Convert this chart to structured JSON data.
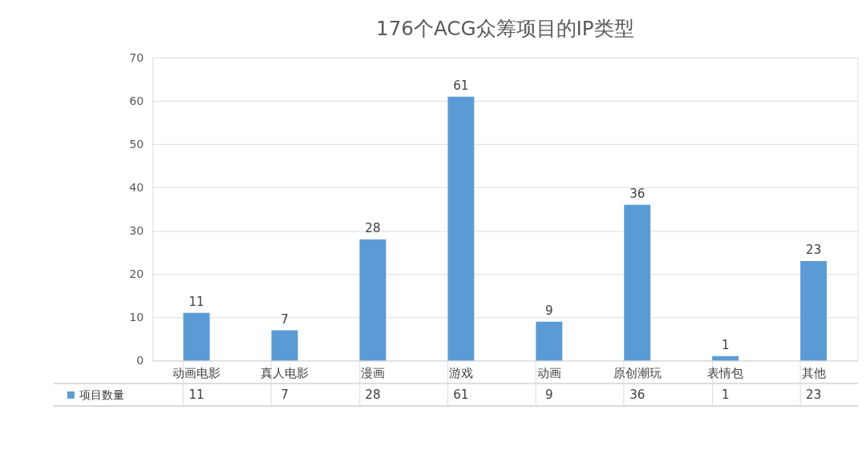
{
  "chart_data": {
    "type": "bar",
    "title": "176个ACG众筹项目的IP类型",
    "categories": [
      "动画电影",
      "真人电影",
      "漫画",
      "游戏",
      "动画",
      "原创潮玩",
      "表情包",
      "其他"
    ],
    "series": [
      {
        "name": "项目数量",
        "color": "#5b9bd5",
        "values": [
          11,
          7,
          28,
          61,
          9,
          36,
          1,
          23
        ]
      }
    ],
    "value_labels": [
      "11",
      "7",
      "28",
      "61",
      "9",
      "36",
      "1",
      "23"
    ],
    "ylim": [
      0,
      70
    ],
    "yticks": [
      0,
      10,
      20,
      30,
      40,
      50,
      60,
      70
    ],
    "grid": "y",
    "data_labels": true,
    "legend": "bottom left"
  }
}
